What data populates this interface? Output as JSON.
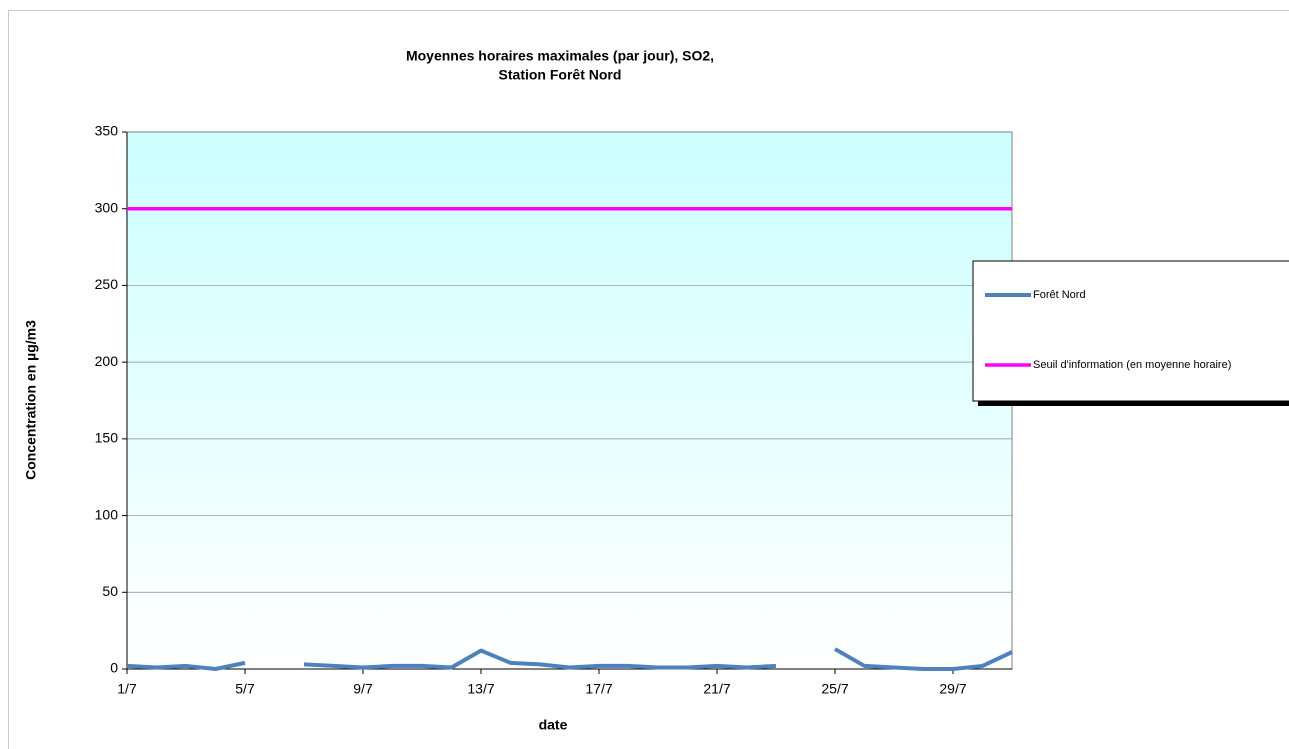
{
  "chart_data": {
    "type": "line",
    "title": [
      "Moyennes horaires maximales (par jour), SO2,",
      "Station Forêt Nord"
    ],
    "y_label": "Concentration en µg/m3",
    "x_label": "date",
    "categories": [
      "1/7",
      null,
      null,
      null,
      "5/7",
      null,
      null,
      null,
      "9/7",
      null,
      null,
      null,
      "13/7",
      null,
      null,
      null,
      "17/7",
      null,
      null,
      null,
      "21/7",
      null,
      null,
      null,
      "25/7",
      null,
      null,
      null,
      "29/7",
      null,
      null
    ],
    "series": [
      {
        "name": "Forêt Nord",
        "color": "#4f81bd",
        "values": [
          2,
          1,
          2,
          0,
          4,
          null,
          3,
          2,
          1,
          2,
          2,
          1,
          12,
          4,
          3,
          1,
          2,
          2,
          1,
          1,
          2,
          1,
          2,
          null,
          13,
          2,
          1,
          0,
          0,
          2,
          11
        ]
      },
      {
        "name": "Seuil d'information (en moyenne horaire)",
        "color": "#ff00ff",
        "values": [
          300,
          300,
          300,
          300,
          300,
          300,
          300,
          300,
          300,
          300,
          300,
          300,
          300,
          300,
          300,
          300,
          300,
          300,
          300,
          300,
          300,
          300,
          300,
          300,
          300,
          300,
          300,
          300,
          300,
          300,
          300
        ]
      }
    ],
    "ylim": [
      0,
      350
    ],
    "yticks": [
      0,
      50,
      100,
      150,
      200,
      250,
      300,
      350
    ],
    "grid": true,
    "legend": "right"
  }
}
